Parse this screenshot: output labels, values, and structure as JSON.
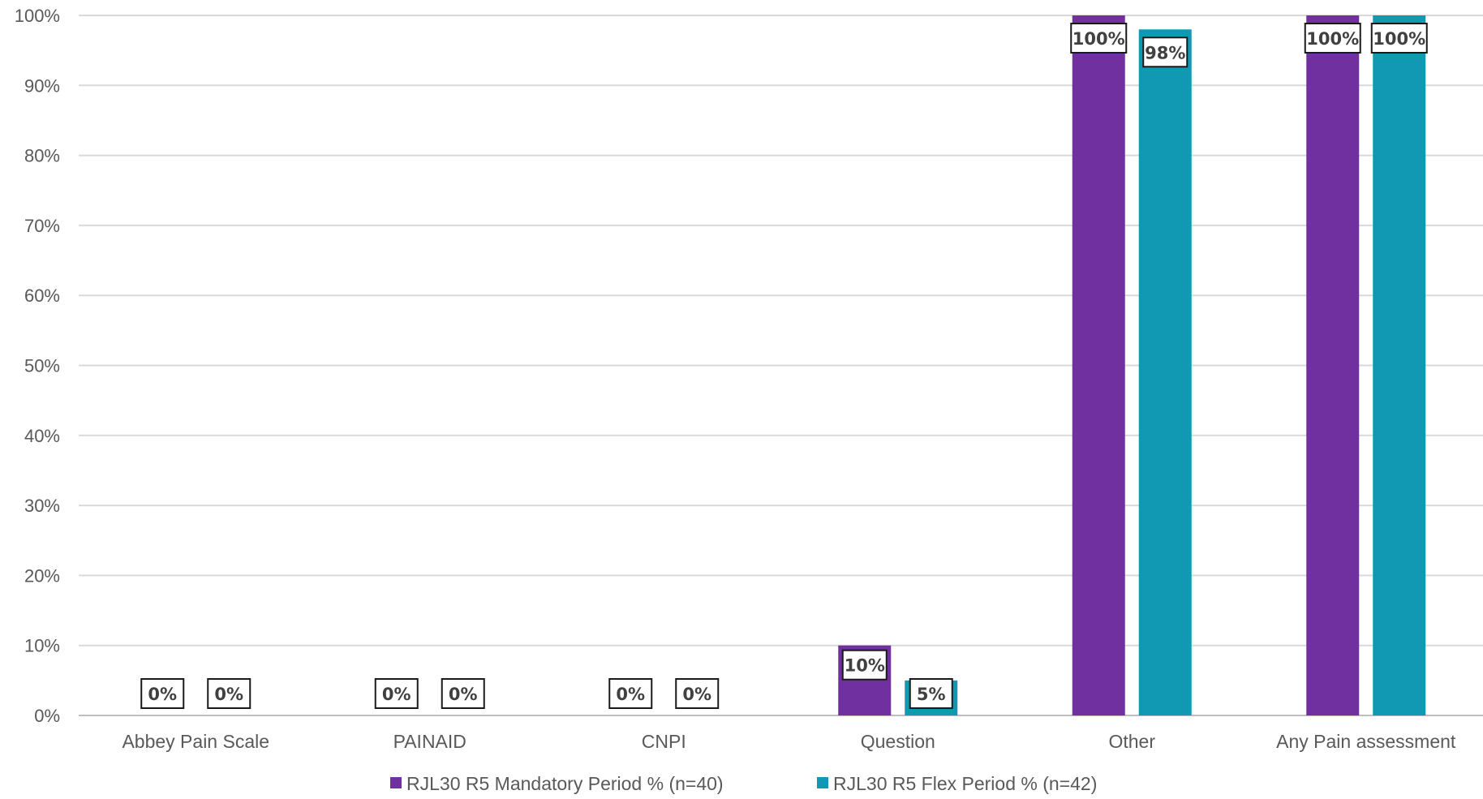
{
  "chart_data": {
    "type": "bar",
    "categories": [
      "Abbey Pain Scale",
      "PAINAID",
      "CNPI",
      "Question",
      "Other",
      "Any Pain assessment"
    ],
    "series": [
      {
        "name": "RJL30 R5 Mandatory Period % (n=40)",
        "color": "#7030A0",
        "values": [
          0,
          0,
          0,
          10,
          100,
          100
        ]
      },
      {
        "name": "RJL30 R5 Flex Period % (n=42)",
        "color": "#1199B4",
        "values": [
          0,
          0,
          0,
          5,
          98,
          100
        ]
      }
    ],
    "data_labels": [
      [
        "0%",
        "0%",
        "0%",
        "10%",
        "100%",
        "100%"
      ],
      [
        "0%",
        "0%",
        "0%",
        "5%",
        "98%",
        "100%"
      ]
    ],
    "y_ticks": [
      "0%",
      "10%",
      "20%",
      "30%",
      "40%",
      "50%",
      "60%",
      "70%",
      "80%",
      "90%",
      "100%"
    ],
    "ylim": [
      0,
      100
    ],
    "title": "",
    "xlabel": "",
    "ylabel": "",
    "grid": true,
    "legend_position": "bottom"
  }
}
